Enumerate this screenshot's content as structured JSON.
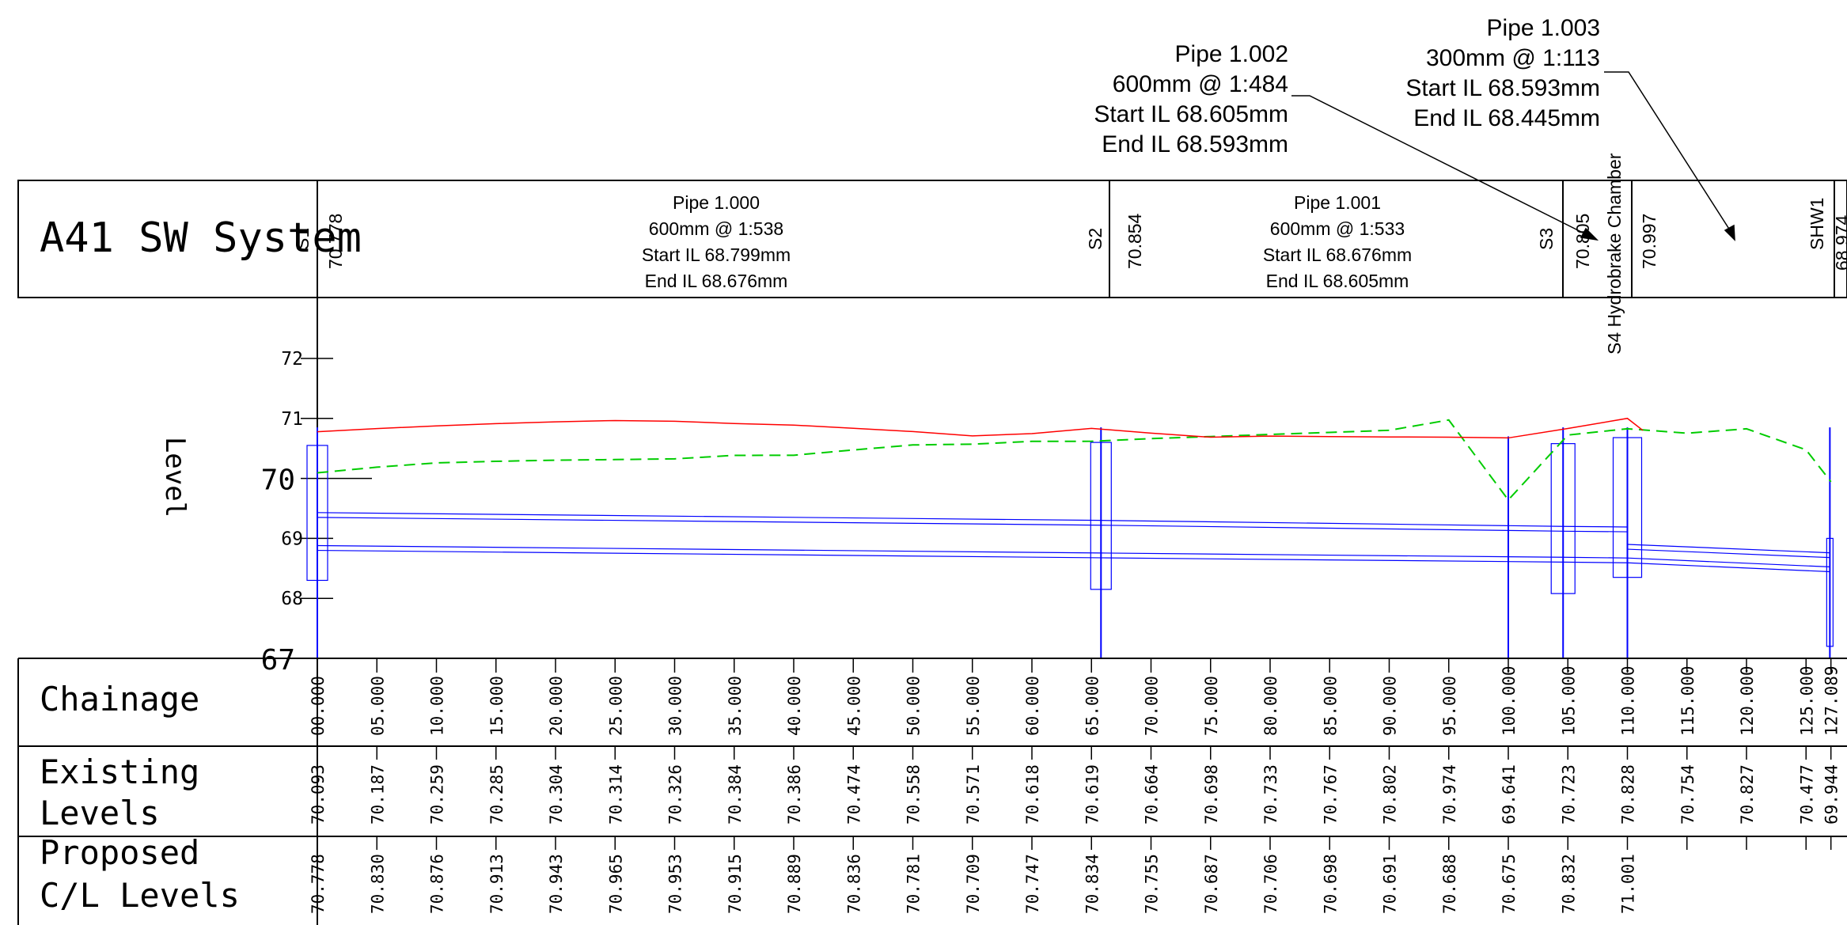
{
  "title": "A41 SW System",
  "annotations": [
    {
      "lines": [
        "Pipe 1.002",
        "600mm @ 1:484",
        "Start IL 68.605mm",
        "End IL 68.593mm"
      ]
    },
    {
      "lines": [
        "Pipe 1.003",
        "300mm @ 1:113",
        "Start IL 68.593mm",
        "End IL 68.445mm"
      ]
    }
  ],
  "pipes": [
    {
      "lines": [
        "Pipe 1.000",
        "600mm @ 1:538",
        "Start IL 68.799mm",
        "End IL 68.676mm"
      ]
    },
    {
      "lines": [
        "Pipe 1.001",
        "600mm @ 1:533",
        "Start IL 68.676mm",
        "End IL 68.605mm"
      ]
    }
  ],
  "manholes": [
    {
      "name": "S1",
      "cover": "70.778"
    },
    {
      "name": "S2",
      "cover": "70.854"
    },
    {
      "name": "S3",
      "cover": "70.805"
    },
    {
      "name": "S4 Hydrobrake Chamber",
      "cover": "70.997"
    },
    {
      "name": "SHW1",
      "cover": "68.974"
    }
  ],
  "axis": {
    "label": "Level",
    "ticks": [
      "72",
      "71",
      "70",
      "69",
      "68",
      "67"
    ]
  },
  "rows": {
    "chainage_label": "Chainage",
    "existing_label": "Existing\nLevels",
    "proposed_label": "Proposed\nC/L Levels"
  },
  "chart_data": {
    "type": "line",
    "ylabel": "Level",
    "ylim": [
      67,
      72
    ],
    "chainage": [
      "00.000",
      "05.000",
      "10.000",
      "15.000",
      "20.000",
      "25.000",
      "30.000",
      "35.000",
      "40.000",
      "45.000",
      "50.000",
      "55.000",
      "60.000",
      "65.000",
      "70.000",
      "75.000",
      "80.000",
      "85.000",
      "90.000",
      "95.000",
      "100.000",
      "105.000",
      "110.000",
      "115.000",
      "120.000",
      "125.000",
      "127.089"
    ],
    "existing_levels": [
      "70.093",
      "70.187",
      "70.259",
      "70.285",
      "70.304",
      "70.314",
      "70.326",
      "70.384",
      "70.386",
      "70.474",
      "70.558",
      "70.571",
      "70.618",
      "70.619",
      "70.664",
      "70.698",
      "70.733",
      "70.767",
      "70.802",
      "70.974",
      "69.641",
      "70.723",
      "70.828",
      "70.754",
      "70.827",
      "70.477",
      "69.944"
    ],
    "proposed_levels": [
      "70.778",
      "70.830",
      "70.876",
      "70.913",
      "70.943",
      "70.965",
      "70.953",
      "70.915",
      "70.889",
      "70.836",
      "70.781",
      "70.709",
      "70.747",
      "70.834",
      "70.755",
      "70.687",
      "70.706",
      "70.698",
      "70.691",
      "70.688",
      "70.675",
      "70.832",
      "71.001",
      "",
      "",
      "",
      ""
    ],
    "series": [
      {
        "name": "Existing Levels",
        "color": "#00cc00",
        "style": "dashed"
      },
      {
        "name": "Proposed C/L Levels",
        "color": "#ff0000",
        "style": "solid"
      }
    ],
    "pipe_color": "#0000ff"
  }
}
